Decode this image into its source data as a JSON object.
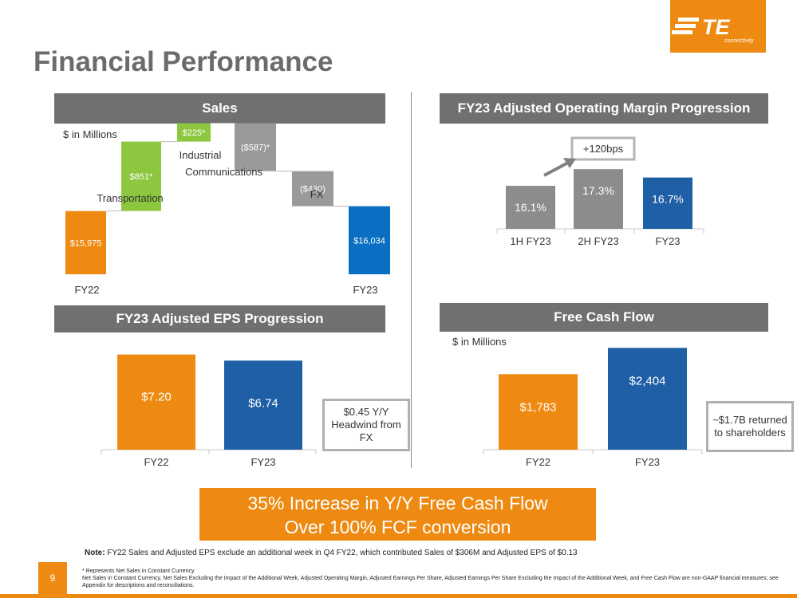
{
  "logo": {
    "brand": "TE",
    "tagline": "connectivity"
  },
  "page_title": "Financial Performance",
  "sales": {
    "header": "Sales",
    "unit_label": "$ in Millions"
  },
  "margin": {
    "header": "FY23 Adjusted Operating Margin Progression"
  },
  "eps": {
    "header": "FY23 Adjusted EPS Progression",
    "callout": "$0.45 Y/Y Headwind from FX"
  },
  "fcf": {
    "header": "Free Cash Flow",
    "unit_label": "$ in Millions",
    "callout": "~$1.7B returned to shareholders"
  },
  "banner": {
    "line1": "35% Increase in Y/Y Free Cash Flow",
    "line2": "Over 100% FCF conversion"
  },
  "note": {
    "label": "Note:",
    "text": "FY22 Sales and Adjusted EPS exclude an additional week in Q4 FY22, which contributed Sales of $306M and Adjusted EPS of $0.13"
  },
  "footnote1": "* Represents Net Sales in Constant Currency",
  "footnote2": "Net Sales in Constant Currency, Net Sales Excluding the Impact of the Additional Week, Adjusted Operating Margin, Adjusted Earnings Per Share, Adjusted Earnings Per Share Excluding the Impact of the Additional Week, and Free Cash Flow are non-GAAP financial measures; see Appendix for descriptions and reconciliations.",
  "page_number": "9",
  "colors": {
    "orange": "#ee8a12",
    "green": "#8dc63f",
    "gray": "#8c8c8c",
    "blue": "#1f5fa6",
    "header_gray": "#707070"
  },
  "chart_data": [
    {
      "id": "sales",
      "type": "waterfall",
      "title": "Sales",
      "unit": "$ in Millions",
      "ylim": [
        15200,
        16900
      ],
      "steps": [
        {
          "label": "FY22",
          "category_label": "FY22",
          "value": 15975,
          "display": "$15,975",
          "kind": "total",
          "color": "#ee8a12"
        },
        {
          "label": "Transportation",
          "value": 851,
          "display": "$851*",
          "kind": "delta",
          "color": "#8dc63f"
        },
        {
          "label": "Industrial",
          "value": 225,
          "display": "$225*",
          "kind": "delta",
          "color": "#8dc63f"
        },
        {
          "label": "Communications",
          "value": -587,
          "display": "($587)*",
          "kind": "delta",
          "color": "#9a9a9a"
        },
        {
          "label": "FX",
          "value": -430,
          "display": "($430)",
          "kind": "delta",
          "color": "#9a9a9a"
        },
        {
          "label": "FY23",
          "category_label": "FY23",
          "value": 16034,
          "display": "$16,034",
          "kind": "total",
          "color": "#0a6fc2"
        }
      ]
    },
    {
      "id": "margin",
      "type": "bar",
      "title": "FY23 Adjusted Operating Margin Progression",
      "categories": [
        "1H FY23",
        "2H FY23",
        "FY23"
      ],
      "values": [
        16.1,
        17.3,
        16.7
      ],
      "labels": [
        "16.1%",
        "17.3%",
        "16.7%"
      ],
      "colors": [
        "#8c8c8c",
        "#8c8c8c",
        "#1f5fa6"
      ],
      "ylim": [
        13,
        18
      ],
      "annotation": "+120bps"
    },
    {
      "id": "eps",
      "type": "bar",
      "title": "FY23 Adjusted EPS Progression",
      "categories": [
        "FY22",
        "FY23"
      ],
      "values": [
        7.2,
        6.74
      ],
      "labels": [
        "$7.20",
        "$6.74"
      ],
      "colors": [
        "#ee8a12",
        "#1f5fa6"
      ],
      "ylim": [
        0,
        7.6
      ]
    },
    {
      "id": "fcf",
      "type": "bar",
      "title": "Free Cash Flow",
      "unit": "$ in Millions",
      "categories": [
        "FY22",
        "FY23"
      ],
      "values": [
        1783,
        2404
      ],
      "labels": [
        "$1,783",
        "$2,404"
      ],
      "colors": [
        "#ee8a12",
        "#1f5fa6"
      ],
      "ylim": [
        0,
        2560
      ]
    }
  ]
}
